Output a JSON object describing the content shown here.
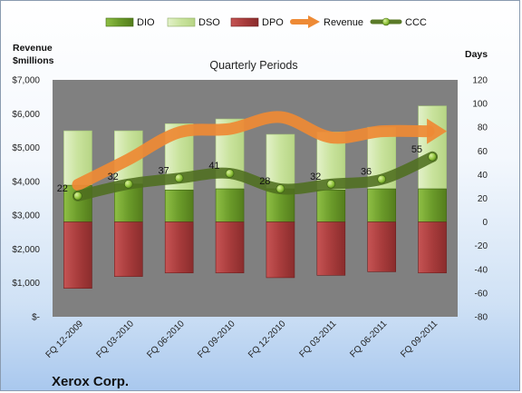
{
  "chart_data": {
    "type": "bar",
    "title": "Quarterly Periods",
    "company": "Xerox Corp.",
    "ylabel_left": "Revenue\n$millions",
    "ylabel_right": "Days",
    "categories": [
      "FQ 12-2009",
      "FQ 03-2010",
      "FQ 06-2010",
      "FQ 09-2010",
      "FQ 12-2010",
      "FQ 03-2011",
      "FQ 06-2011",
      "FQ 09-2011"
    ],
    "left_axis": {
      "min": 0,
      "max": 7000,
      "step": 1000,
      "tick_labels": [
        "$-",
        "$1,000",
        "$2,000",
        "$3,000",
        "$4,000",
        "$5,000",
        "$6,000",
        "$7,000"
      ]
    },
    "right_axis": {
      "min": -80,
      "max": 120,
      "step": 20,
      "tick_labels": [
        "-80",
        "-60",
        "-40",
        "-20",
        "0",
        "20",
        "40",
        "60",
        "80",
        "100",
        "120"
      ]
    },
    "series": [
      {
        "name": "DIO",
        "axis": "right",
        "values": [
          31,
          32,
          27,
          28,
          28,
          27,
          28,
          28
        ]
      },
      {
        "name": "DSO",
        "axis": "right",
        "values": [
          77,
          77,
          83,
          87,
          74,
          76,
          80,
          98
        ]
      },
      {
        "name": "DPO",
        "axis": "right",
        "values": [
          -56,
          -46,
          -43,
          -43,
          -47,
          -45,
          -42,
          -43
        ]
      },
      {
        "name": "Revenue",
        "axis": "left",
        "values": [
          3900,
          4650,
          5450,
          5550,
          5900,
          5300,
          5480,
          5480
        ]
      },
      {
        "name": "CCC",
        "axis": "right",
        "values": [
          22,
          32,
          37,
          41,
          28,
          32,
          36,
          55
        ]
      }
    ],
    "ccc_labels": [
      "22",
      "32",
      "37",
      "41",
      "28",
      "32",
      "36",
      "55"
    ],
    "legend": [
      "DIO",
      "DSO",
      "DPO",
      "Revenue",
      "CCC"
    ],
    "legend_position": "top",
    "colors": {
      "DIO": "#6b9b2a",
      "DSO": "#cfe6a8",
      "DPO": "#a83c3c",
      "Revenue": "#ee8a35",
      "CCC": "#5a7a28",
      "plot_bg": "#808080"
    },
    "grid": false
  }
}
